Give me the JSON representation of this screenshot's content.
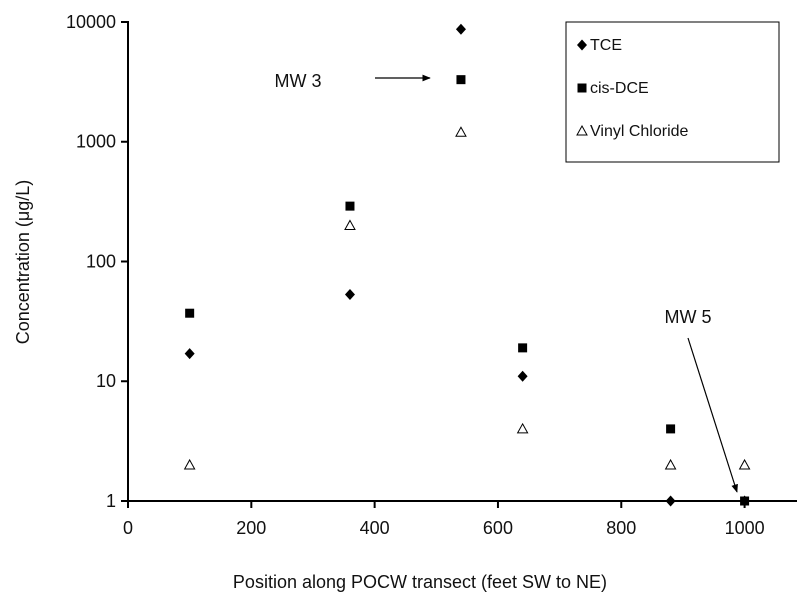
{
  "chart_data": {
    "type": "scatter",
    "x_label": "Position along POCW transect (feet SW to NE)",
    "y_label": "Concentration (μg/L)",
    "x": [
      100,
      360,
      540,
      640,
      880,
      1000
    ],
    "series": [
      {
        "name": "TCE",
        "color": "#000000",
        "marker": "diamond",
        "values": [
          17,
          53,
          8700,
          11,
          1,
          1
        ]
      },
      {
        "name": "cis-DCE",
        "color": "#000000",
        "marker": "square",
        "values": [
          37,
          290,
          3300,
          19,
          4,
          1
        ]
      },
      {
        "name": "Vinyl Chloride",
        "color": "#000000",
        "marker": "triangle-open",
        "values": [
          2,
          200,
          1200,
          4,
          2,
          2
        ]
      }
    ],
    "xlim": [
      0,
      1085
    ],
    "xticks": [
      0,
      200,
      400,
      600,
      800,
      1000
    ],
    "ylim": [
      1,
      10000
    ],
    "yticks": [
      1,
      10,
      100,
      1000,
      10000
    ],
    "y_scale": "log",
    "legend": "top-right",
    "annotations": [
      "MW 3",
      "MW 5"
    ]
  }
}
